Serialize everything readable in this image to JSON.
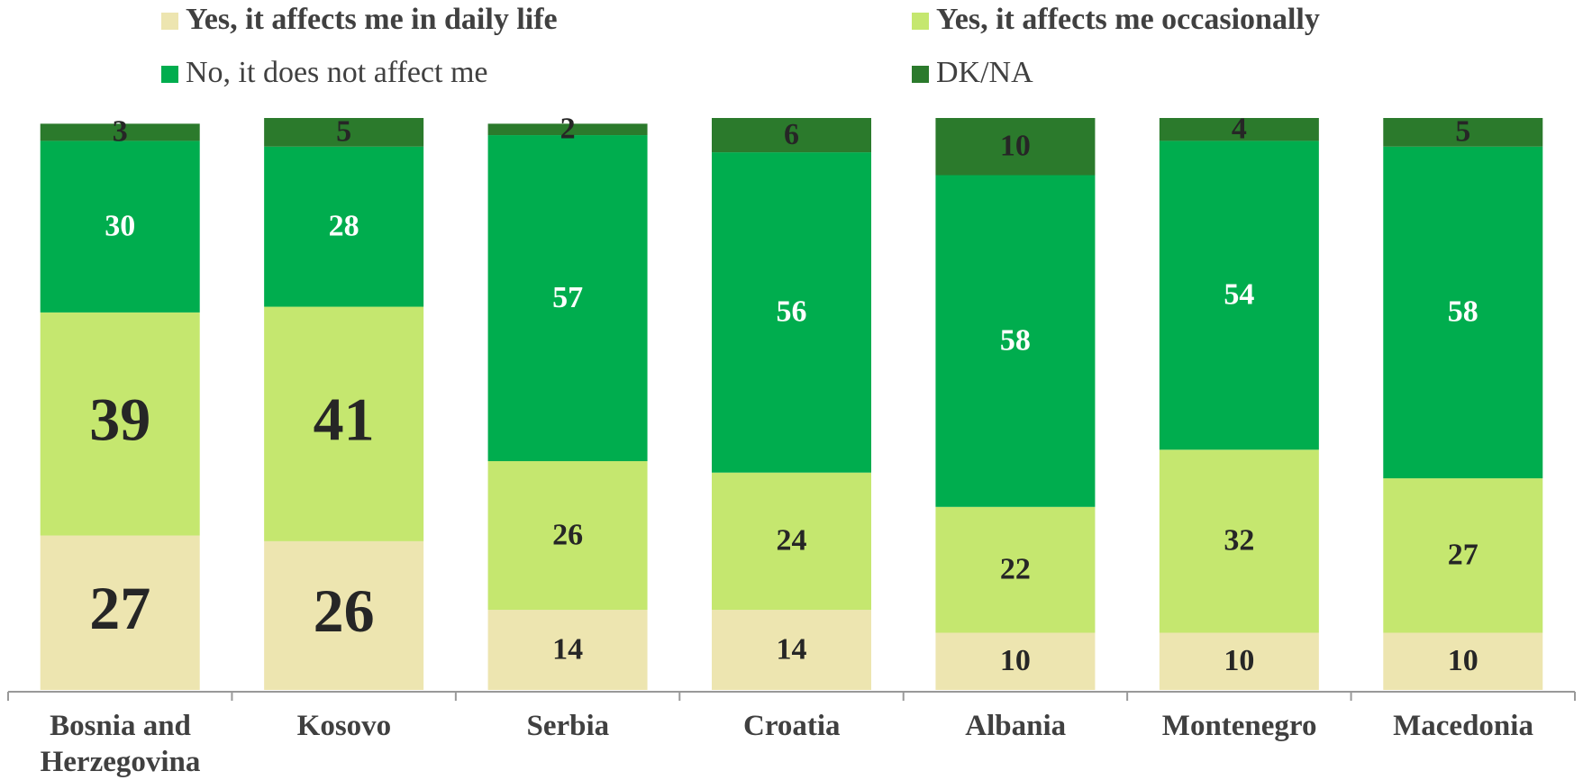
{
  "chart_data": {
    "type": "stacked_bar",
    "categories": [
      "Bosnia and Herzegovina",
      "Kosovo",
      "Serbia",
      "Croatia",
      "Albania",
      "Montenegro",
      "Macedonia"
    ],
    "series": [
      {
        "name": "Yes, it affects me in daily life",
        "color": "#ede5b0",
        "values": [
          27,
          26,
          14,
          14,
          10,
          10,
          10
        ]
      },
      {
        "name": "Yes, it affects me occasionally",
        "color": "#c5e76f",
        "values": [
          39,
          41,
          26,
          24,
          22,
          32,
          27
        ]
      },
      {
        "name": "No, it does not affect me",
        "color": "#00ad4e",
        "values": [
          30,
          28,
          57,
          56,
          58,
          54,
          58
        ]
      },
      {
        "name": "DK/NA",
        "color": "#2b7a2c",
        "values": [
          3,
          5,
          2,
          6,
          10,
          4,
          5
        ]
      }
    ],
    "ylim": [
      0,
      100
    ]
  }
}
